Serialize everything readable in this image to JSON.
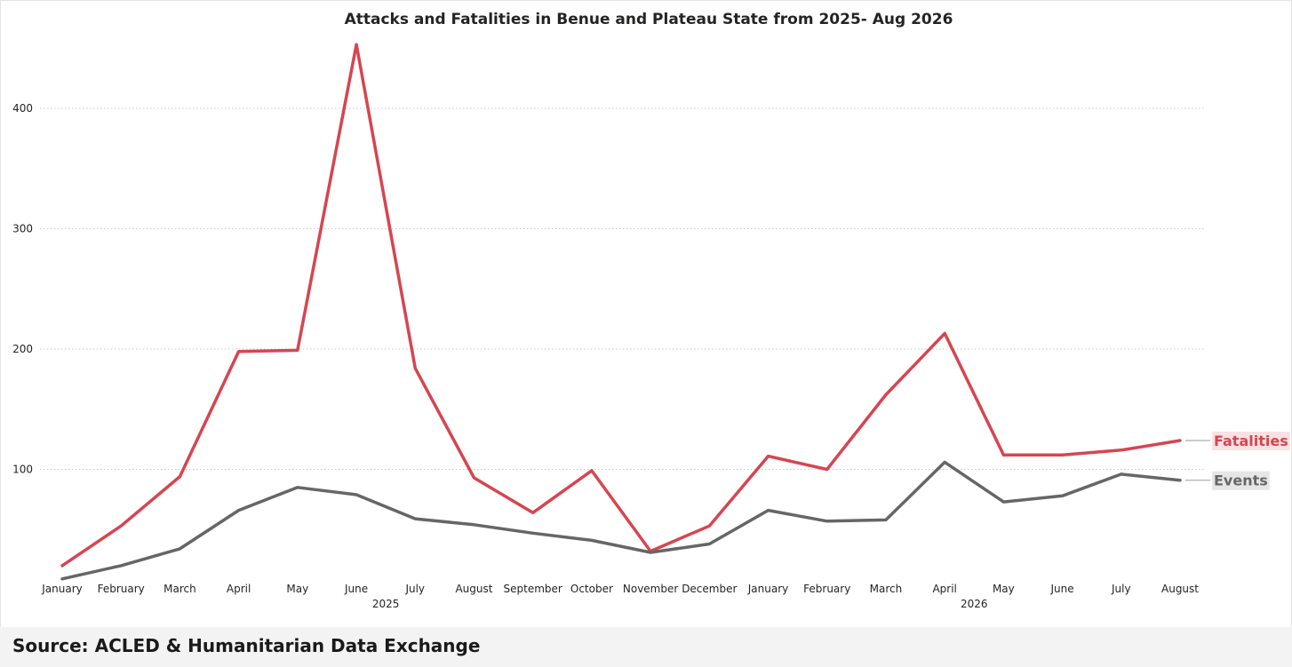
{
  "chart_data": {
    "type": "line",
    "title": "Attacks and Fatalities in Benue and Plateau State from 2025- Aug 2026",
    "x": [
      "January",
      "February",
      "March",
      "April",
      "May",
      "June",
      "July",
      "August",
      "September",
      "October",
      "November",
      "December",
      "January",
      "February",
      "March",
      "April",
      "May",
      "June",
      "July",
      "August"
    ],
    "x_groups": [
      {
        "label": "2025",
        "start": 0,
        "end": 11
      },
      {
        "label": "2026",
        "start": 12,
        "end": 19
      }
    ],
    "y_ticks": [
      100,
      200,
      300,
      400
    ],
    "ylim": [
      0,
      460
    ],
    "grid": "horizontal dotted",
    "series": [
      {
        "name": "Fatalities",
        "color": "#d64550",
        "values": [
          20,
          53,
          94,
          198,
          199,
          453,
          184,
          93,
          64,
          99,
          32,
          53,
          111,
          100,
          162,
          213,
          112,
          112,
          116,
          124
        ]
      },
      {
        "name": "Events",
        "color": "#666666",
        "values": [
          9,
          20,
          34,
          66,
          85,
          79,
          59,
          54,
          47,
          41,
          31,
          38,
          66,
          57,
          58,
          106,
          73,
          78,
          96,
          91
        ]
      }
    ]
  },
  "footer": {
    "source": "Source: ACLED & Humanitarian Data Exchange"
  }
}
